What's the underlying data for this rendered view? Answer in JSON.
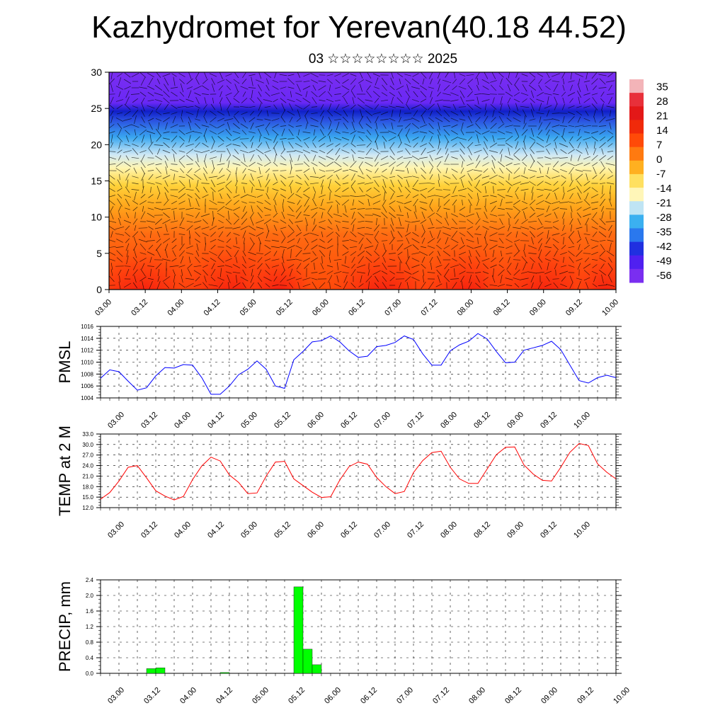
{
  "title": "Kazhydromet for Yerevan(40.18 44.52)",
  "subtitle": "03 ☆☆☆☆☆☆☆☆ 2025",
  "x_ticks": [
    "03.00",
    "03.12",
    "04.00",
    "04.12",
    "05.00",
    "05.12",
    "06.00",
    "06.12",
    "07.00",
    "07.12",
    "08.00",
    "08.12",
    "09.00",
    "09.12",
    "10.00"
  ],
  "colors": {
    "pmsl_line": "#0000ff",
    "temp_line": "#ff0000",
    "precip_bar": "#00ff00",
    "grid": "#000000"
  },
  "chart_data": [
    {
      "type": "heatmap",
      "ylim": [
        0,
        30
      ],
      "y_ticks": [
        0,
        5,
        10,
        15,
        20,
        25,
        30
      ],
      "colorbar_labels": [
        35,
        28,
        21,
        14,
        7,
        0,
        -7,
        -14,
        -21,
        -28,
        -35,
        -42,
        -49,
        -56
      ],
      "colorbar_range": [
        -63,
        38
      ],
      "overlay": "wind vectors"
    },
    {
      "type": "line",
      "ylabel": "PMSL",
      "ylim": [
        1004,
        1016
      ],
      "y_ticks": [
        1004,
        1006,
        1008,
        1010,
        1012,
        1014,
        1016
      ],
      "x": [
        0,
        1,
        2,
        3,
        4,
        5,
        6,
        7,
        8,
        9,
        10,
        11,
        12,
        13,
        14,
        15,
        16,
        17,
        18,
        19,
        20,
        21,
        22,
        23,
        24,
        25,
        26,
        27,
        28,
        29,
        30,
        31,
        32,
        33,
        34,
        35,
        36,
        37,
        38,
        39,
        40,
        41,
        42,
        43,
        44,
        45,
        46,
        47,
        48,
        49,
        50,
        51,
        52,
        53,
        54,
        55,
        56
      ],
      "values": [
        1007.3,
        1008.7,
        1008.4,
        1006.8,
        1005.3,
        1005.7,
        1007.7,
        1009.1,
        1009.0,
        1009.6,
        1009.5,
        1007.4,
        1004.6,
        1004.6,
        1006.0,
        1007.9,
        1008.8,
        1010.2,
        1008.8,
        1006.0,
        1005.6,
        1010.4,
        1011.8,
        1013.4,
        1013.6,
        1014.4,
        1013.4,
        1011.9,
        1010.8,
        1011.0,
        1012.6,
        1012.8,
        1013.3,
        1014.4,
        1013.8,
        1011.4,
        1009.5,
        1009.5,
        1011.9,
        1012.9,
        1013.5,
        1014.8,
        1013.9,
        1011.8,
        1009.9,
        1010.0,
        1012.0,
        1012.4,
        1012.8,
        1013.5,
        1012.1,
        1009.5,
        1006.9,
        1006.5,
        1007.4,
        1007.8,
        1007.4
      ]
    },
    {
      "type": "line",
      "ylabel": "TEMP at 2 M",
      "ylim": [
        12.0,
        33.0
      ],
      "y_ticks": [
        12.0,
        15.0,
        18.0,
        21.0,
        24.0,
        27.0,
        30.0,
        33.0
      ],
      "x": [
        0,
        1,
        2,
        3,
        4,
        5,
        6,
        7,
        8,
        9,
        10,
        11,
        12,
        13,
        14,
        15,
        16,
        17,
        18,
        19,
        20,
        21,
        22,
        23,
        24,
        25,
        26,
        27,
        28,
        29,
        30,
        31,
        32,
        33,
        34,
        35,
        36,
        37,
        38,
        39,
        40,
        41,
        42,
        43,
        44,
        45,
        46,
        47,
        48,
        49,
        50,
        51,
        52,
        53,
        54,
        55,
        56
      ],
      "values": [
        14.4,
        16.3,
        19.6,
        23.5,
        24.0,
        20.5,
        16.8,
        15.3,
        14.2,
        15.2,
        20.0,
        23.9,
        26.4,
        25.3,
        21.3,
        19.2,
        16.0,
        16.2,
        21.0,
        25.0,
        25.2,
        20.2,
        18.3,
        16.4,
        14.9,
        15.1,
        19.9,
        23.7,
        25.0,
        24.4,
        20.6,
        18.0,
        16.0,
        16.6,
        22.0,
        25.4,
        27.7,
        28.1,
        23.5,
        20.2,
        18.9,
        18.9,
        23.0,
        27.1,
        29.2,
        29.3,
        24.2,
        21.6,
        19.8,
        19.6,
        23.5,
        27.8,
        30.3,
        29.7,
        24.5,
        22.1,
        20.2
      ]
    },
    {
      "type": "bar",
      "ylabel": "PRECIP, mm",
      "ylim": [
        0,
        2.4
      ],
      "y_ticks": [
        0.0,
        0.4,
        0.8,
        1.2,
        1.6,
        2.0,
        2.4
      ],
      "bars": [
        {
          "x": 5,
          "value": 0.12
        },
        {
          "x": 6,
          "value": 0.14
        },
        {
          "x": 13,
          "value": 0.02
        },
        {
          "x": 21,
          "value": 2.22
        },
        {
          "x": 22,
          "value": 0.62
        },
        {
          "x": 23,
          "value": 0.22
        }
      ]
    }
  ]
}
